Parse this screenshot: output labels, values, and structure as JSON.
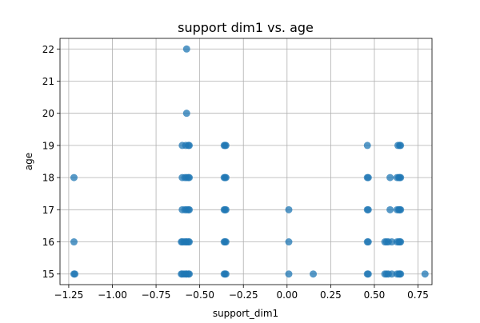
{
  "chart_data": {
    "type": "scatter",
    "title": "support dim1 vs. age",
    "xlabel": "support_dim1",
    "ylabel": "age",
    "xlim": [
      -1.3,
      0.83
    ],
    "ylim": [
      14.67,
      22.33
    ],
    "xticks": [
      -1.25,
      -1.0,
      -0.75,
      -0.5,
      -0.25,
      0.0,
      0.25,
      0.5,
      0.75
    ],
    "xtick_labels": [
      "−1.25",
      "−1.00",
      "−0.75",
      "−0.50",
      "−0.25",
      "0.00",
      "0.25",
      "0.50",
      "0.75"
    ],
    "yticks": [
      15,
      16,
      17,
      18,
      19,
      20,
      21,
      22
    ],
    "ytick_labels": [
      "15",
      "16",
      "17",
      "18",
      "19",
      "20",
      "21",
      "22"
    ],
    "grid": true,
    "color": "#1f77b4",
    "alpha": 0.75,
    "series": [
      {
        "points": [
          [
            -1.22,
            18
          ],
          [
            -1.22,
            16
          ],
          [
            -1.22,
            15
          ],
          [
            -1.215,
            15
          ],
          [
            -0.6,
            19
          ],
          [
            -0.58,
            19
          ],
          [
            -0.565,
            19
          ],
          [
            -0.56,
            19
          ],
          [
            -0.575,
            22
          ],
          [
            -0.575,
            20
          ],
          [
            -0.6,
            18
          ],
          [
            -0.585,
            18
          ],
          [
            -0.575,
            18
          ],
          [
            -0.565,
            18
          ],
          [
            -0.56,
            18
          ],
          [
            -0.6,
            17
          ],
          [
            -0.585,
            17
          ],
          [
            -0.575,
            17
          ],
          [
            -0.565,
            17
          ],
          [
            -0.56,
            17
          ],
          [
            -0.605,
            16
          ],
          [
            -0.6,
            16
          ],
          [
            -0.59,
            16
          ],
          [
            -0.58,
            16
          ],
          [
            -0.575,
            16
          ],
          [
            -0.565,
            16
          ],
          [
            -0.56,
            16
          ],
          [
            -0.605,
            15
          ],
          [
            -0.6,
            15
          ],
          [
            -0.59,
            15
          ],
          [
            -0.58,
            15
          ],
          [
            -0.575,
            15
          ],
          [
            -0.565,
            15
          ],
          [
            -0.56,
            15
          ],
          [
            -0.36,
            19
          ],
          [
            -0.355,
            19
          ],
          [
            -0.35,
            19
          ],
          [
            -0.36,
            18
          ],
          [
            -0.355,
            18
          ],
          [
            -0.35,
            18
          ],
          [
            -0.36,
            17
          ],
          [
            -0.355,
            17
          ],
          [
            -0.35,
            17
          ],
          [
            -0.36,
            16
          ],
          [
            -0.355,
            16
          ],
          [
            -0.35,
            16
          ],
          [
            -0.36,
            15
          ],
          [
            -0.355,
            15
          ],
          [
            -0.35,
            15
          ],
          [
            0.01,
            17
          ],
          [
            0.01,
            16
          ],
          [
            0.01,
            15
          ],
          [
            0.15,
            15
          ],
          [
            0.46,
            19
          ],
          [
            0.46,
            18
          ],
          [
            0.465,
            18
          ],
          [
            0.46,
            17
          ],
          [
            0.465,
            17
          ],
          [
            0.46,
            16
          ],
          [
            0.465,
            16
          ],
          [
            0.46,
            15
          ],
          [
            0.465,
            15
          ],
          [
            0.56,
            16
          ],
          [
            0.57,
            16
          ],
          [
            0.58,
            16
          ],
          [
            0.6,
            16
          ],
          [
            0.56,
            15
          ],
          [
            0.57,
            15
          ],
          [
            0.58,
            15
          ],
          [
            0.59,
            18
          ],
          [
            0.59,
            17
          ],
          [
            0.6,
            15
          ],
          [
            0.635,
            19
          ],
          [
            0.645,
            19
          ],
          [
            0.65,
            19
          ],
          [
            0.63,
            18
          ],
          [
            0.64,
            18
          ],
          [
            0.645,
            18
          ],
          [
            0.65,
            18
          ],
          [
            0.63,
            17
          ],
          [
            0.64,
            17
          ],
          [
            0.645,
            17
          ],
          [
            0.65,
            17
          ],
          [
            0.63,
            16
          ],
          [
            0.64,
            16
          ],
          [
            0.645,
            16
          ],
          [
            0.65,
            16
          ],
          [
            0.63,
            15
          ],
          [
            0.64,
            15
          ],
          [
            0.645,
            15
          ],
          [
            0.65,
            15
          ],
          [
            0.79,
            15
          ]
        ]
      }
    ]
  }
}
